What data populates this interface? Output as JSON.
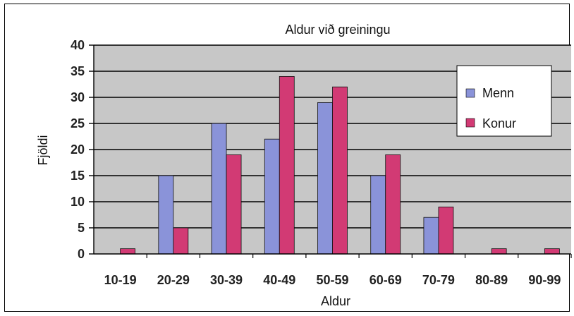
{
  "chart_data": {
    "type": "bar",
    "title": "Aldur við greiningu",
    "xlabel": "Aldur",
    "ylabel": "Fjöldi",
    "categories": [
      "10-19",
      "20-29",
      "30-39",
      "40-49",
      "50-59",
      "60-69",
      "70-79",
      "80-89",
      "90-99"
    ],
    "series": [
      {
        "name": "Menn",
        "values": [
          0,
          15,
          25,
          22,
          29,
          15,
          7,
          0,
          0
        ],
        "color": "#8a93d9"
      },
      {
        "name": "Konur",
        "values": [
          1,
          5,
          19,
          34,
          32,
          19,
          9,
          1,
          1
        ],
        "color": "#d23a74"
      }
    ],
    "ylim": [
      0,
      40
    ],
    "yticks": [
      0,
      5,
      10,
      15,
      20,
      25,
      30,
      35,
      40
    ],
    "grid": true,
    "legend_position": "top-right",
    "plot_background": "#c7c7c7"
  }
}
